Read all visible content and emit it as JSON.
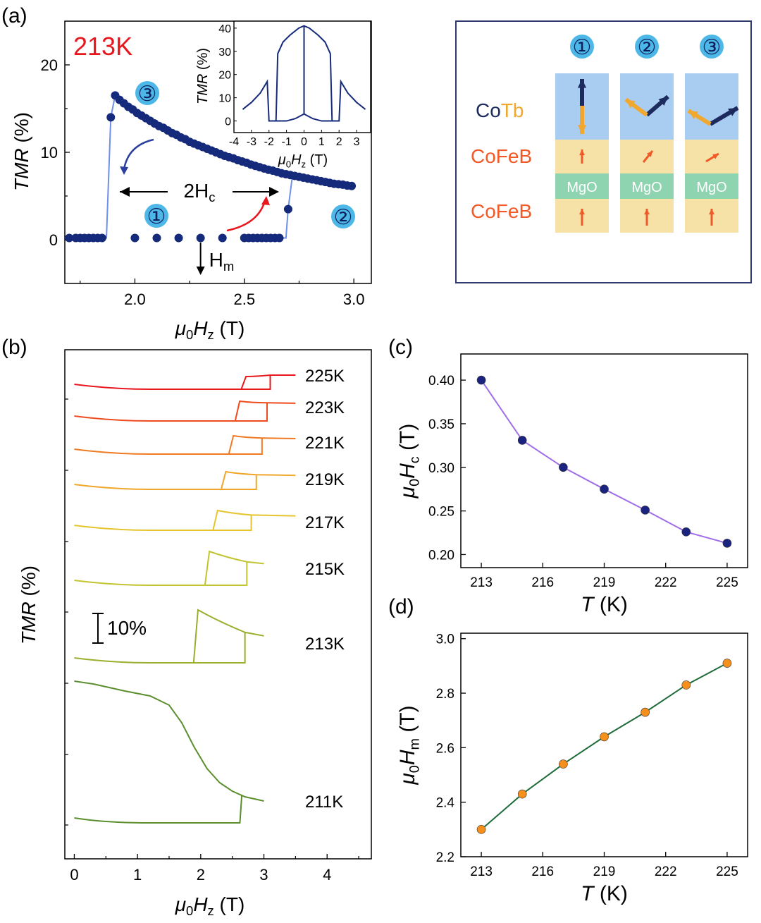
{
  "panels": {
    "a": "(a)",
    "b": "(b)",
    "c": "(c)",
    "d": "(d)"
  },
  "panel_a": {
    "temperature": "213K",
    "twoHc_label": "2H",
    "twoHc_sub": "c",
    "Hm_label": "H",
    "Hm_sub": "m",
    "state_labels": [
      "①",
      "②",
      "③"
    ],
    "ylabel_italic": "TMR",
    "ylabel_unit": " (%)",
    "xlabel_mu": "μ",
    "xlabel_sub0": "0",
    "xlabel_H": "H",
    "xlabel_subz": "z",
    "xlabel_unit": " (T)",
    "xticks": [
      "2.0",
      "2.5",
      "3.0"
    ],
    "yticks": [
      "0",
      "10",
      "20"
    ],
    "colors": {
      "data": "#152a7a",
      "line": "#6f8fe8",
      "temp": "#e8161d",
      "badge": "#4db8e8",
      "arrow_down": "#2a3f9e",
      "arrow_up": "#e8161d"
    },
    "inset": {
      "ylabel_italic": "TMR",
      "ylabel_unit": " (%)",
      "xlabel_mu": "μ",
      "xlabel_sub0": "0",
      "xlabel_H": "H",
      "xlabel_subz": "z",
      "xlabel_unit": " (T)",
      "xticks": [
        "-4",
        "-3",
        "-2",
        "-1",
        "0",
        "1",
        "2",
        "3"
      ],
      "yticks": [
        "0",
        "10",
        "20",
        "30",
        "40"
      ]
    }
  },
  "schematic": {
    "columns": [
      "①",
      "②",
      "③"
    ],
    "layers": {
      "cotb_co": "Co",
      "cotb_tb": "Tb",
      "cofeb_top": "CoFeB",
      "mgo": "MgO",
      "cofeb_bottom": "CoFeB"
    },
    "colors": {
      "cotb_bg": "#a9cdf0",
      "cofeb_bg": "#f6e2a7",
      "mgo_bg": "#8fd4b0",
      "co_text": "#1c2a5e",
      "tb_text": "#f0a830",
      "cofeb_text": "#f05a28",
      "co_arrow": "#1c2a5e",
      "tb_arrow": "#f0a830",
      "fm_arrow": "#f05a28",
      "frame": "#2f3a6e"
    }
  },
  "chart_data": [
    {
      "panel": "a",
      "type": "line",
      "title": "213K",
      "xlabel": "μ0Hz (T)",
      "ylabel": "TMR (%)",
      "xlim": [
        1.68,
        3.08
      ],
      "ylim": [
        -5,
        25
      ],
      "branch_low": {
        "x": [
          1.7,
          1.73,
          1.75,
          1.77,
          1.79,
          1.81,
          1.83,
          1.85,
          2.0,
          2.1,
          2.2,
          2.3,
          2.4,
          2.5,
          2.52,
          2.54,
          2.56,
          2.58,
          2.6,
          2.62,
          2.64,
          2.66
        ],
        "y": [
          0.2,
          0.2,
          0.2,
          0.2,
          0.2,
          0.2,
          0.2,
          0.2,
          0.2,
          0.2,
          0.2,
          0.2,
          0.2,
          0.2,
          0.2,
          0.2,
          0.2,
          0.2,
          0.2,
          0.2,
          0.2,
          0.2
        ]
      },
      "branch_high": {
        "x": [
          1.89,
          1.91,
          1.93,
          1.95,
          1.97,
          1.99,
          2.01,
          2.03,
          2.05,
          2.07,
          2.09,
          2.11,
          2.13,
          2.15,
          2.17,
          2.19,
          2.21,
          2.23,
          2.25,
          2.27,
          2.29,
          2.31,
          2.33,
          2.35,
          2.37,
          2.39,
          2.41,
          2.43,
          2.45,
          2.47,
          2.49,
          2.51,
          2.53,
          2.55,
          2.57,
          2.59,
          2.61,
          2.63,
          2.65,
          2.67,
          2.69,
          2.71,
          2.73,
          2.75,
          2.77,
          2.79,
          2.81,
          2.83,
          2.85,
          2.87,
          2.89,
          2.91,
          2.93,
          2.95,
          2.97,
          2.99
        ],
        "y": [
          14.0,
          16.5,
          16.0,
          15.6,
          15.2,
          14.9,
          14.5,
          14.2,
          13.9,
          13.6,
          13.3,
          13.0,
          12.8,
          12.5,
          12.2,
          12.0,
          11.7,
          11.5,
          11.2,
          11.0,
          10.8,
          10.6,
          10.4,
          10.2,
          10.0,
          9.8,
          9.6,
          9.45,
          9.3,
          9.1,
          8.95,
          8.8,
          8.6,
          8.45,
          8.3,
          8.15,
          8.0,
          7.9,
          7.75,
          7.6,
          7.5,
          7.4,
          7.3,
          7.2,
          7.1,
          7.0,
          6.9,
          6.8,
          6.7,
          6.6,
          6.5,
          6.4,
          6.35,
          6.3,
          6.2,
          6.15
        ]
      },
      "switch_points": {
        "x": [
          1.89,
          2.7
        ],
        "y": [
          14.0,
          3.5
        ]
      },
      "xticks": [
        2.0,
        2.5,
        3.0
      ],
      "yticks": [
        0,
        10,
        20
      ]
    },
    {
      "panel": "a-inset",
      "type": "line",
      "xlabel": "μ0Hz (T)",
      "ylabel": "TMR (%)",
      "xlim": [
        -4,
        3.8
      ],
      "ylim": [
        -5,
        43
      ],
      "curve_x": [
        -3.5,
        -3.0,
        -2.5,
        -2.1,
        -2.0,
        -1.5,
        -1.0,
        -0.5,
        0.0,
        0.5,
        1.0,
        1.5,
        2.0,
        2.1,
        2.5,
        3.0,
        3.5
      ],
      "curve_y": [
        5,
        8,
        12,
        17,
        0,
        0,
        0,
        1,
        3,
        1,
        0,
        0,
        0,
        17,
        12,
        8,
        5
      ],
      "dome_x": [
        -1.6,
        -1.5,
        -1.2,
        -0.8,
        -0.3,
        0.0,
        0.3,
        0.8,
        1.2,
        1.5,
        1.6
      ],
      "dome_y": [
        0,
        29,
        34,
        37,
        40,
        41,
        40,
        37,
        34,
        29,
        0
      ],
      "xticks": [
        -4,
        -3,
        -2,
        -1,
        0,
        1,
        2,
        3
      ],
      "yticks": [
        0,
        10,
        20,
        30,
        40
      ]
    },
    {
      "panel": "b",
      "type": "line",
      "xlabel": "μ0Hz (T)",
      "ylabel": "TMR (%)",
      "xlim": [
        -0.15,
        4.7
      ],
      "xticks": [
        0,
        1,
        2,
        3,
        4
      ],
      "scale_bar": "10%",
      "series": [
        {
          "name": "225K",
          "color": "#e8161d",
          "Hc1": 2.65,
          "Hc2": 3.1,
          "high": 1.0,
          "tail_end": 3.5,
          "decay": 0.0
        },
        {
          "name": "223K",
          "color": "#ef4b1e",
          "Hc1": 2.55,
          "Hc2": 3.05,
          "high": 1.0,
          "tail_end": 3.5,
          "decay": 0.15
        },
        {
          "name": "221K",
          "color": "#f07a22",
          "Hc1": 2.45,
          "Hc2": 2.97,
          "high": 1.0,
          "tail_end": 3.5,
          "decay": 0.2
        },
        {
          "name": "219K",
          "color": "#f0a628",
          "Hc1": 2.33,
          "Hc2": 2.88,
          "high": 1.0,
          "tail_end": 3.5,
          "decay": 0.25
        },
        {
          "name": "217K",
          "color": "#e6c42e",
          "Hc1": 2.2,
          "Hc2": 2.8,
          "high": 1.0,
          "tail_end": 3.5,
          "decay": 0.3
        },
        {
          "name": "215K",
          "color": "#c2c431",
          "Hc1": 2.07,
          "Hc2": 2.73,
          "high": 1.0,
          "tail_end": 3.0,
          "decay": 0.35
        },
        {
          "name": "213K",
          "color": "#9aae2e",
          "Hc1": 1.89,
          "Hc2": 2.7,
          "high": 1.0,
          "tail_end": 3.0,
          "decay": 0.45
        },
        {
          "name": "211K",
          "color": "#5b8f2e",
          "Hc1": 0.0,
          "Hc2": 2.65,
          "high": 1.0,
          "tail_end": 3.0,
          "decay": 0.0
        }
      ]
    },
    {
      "panel": "c",
      "type": "line",
      "xlabel": "T (K)",
      "ylabel": "μ0Hc (T)",
      "x": [
        213,
        215,
        217,
        219,
        221,
        223,
        225
      ],
      "y": [
        0.4,
        0.331,
        0.3,
        0.275,
        0.251,
        0.226,
        0.213
      ],
      "xlim": [
        212,
        226
      ],
      "ylim": [
        0.185,
        0.43
      ],
      "xticks": [
        213,
        216,
        219,
        222,
        225
      ],
      "yticks": [
        0.2,
        0.25,
        0.3,
        0.35,
        0.4
      ],
      "line_color": "#a06ee8",
      "marker_color": "#1a237e"
    },
    {
      "panel": "d",
      "type": "line",
      "xlabel": "T (K)",
      "ylabel": "μ0Hm (T)",
      "x": [
        213,
        215,
        217,
        219,
        221,
        223,
        225
      ],
      "y": [
        2.3,
        2.43,
        2.54,
        2.64,
        2.73,
        2.83,
        2.91
      ],
      "xlim": [
        212,
        226
      ],
      "ylim": [
        2.2,
        3.02
      ],
      "xticks": [
        213,
        216,
        219,
        222,
        225
      ],
      "yticks": [
        2.2,
        2.4,
        2.6,
        2.8,
        3.0
      ],
      "line_color": "#1f6b3a",
      "marker_color": "#f5901c"
    }
  ]
}
